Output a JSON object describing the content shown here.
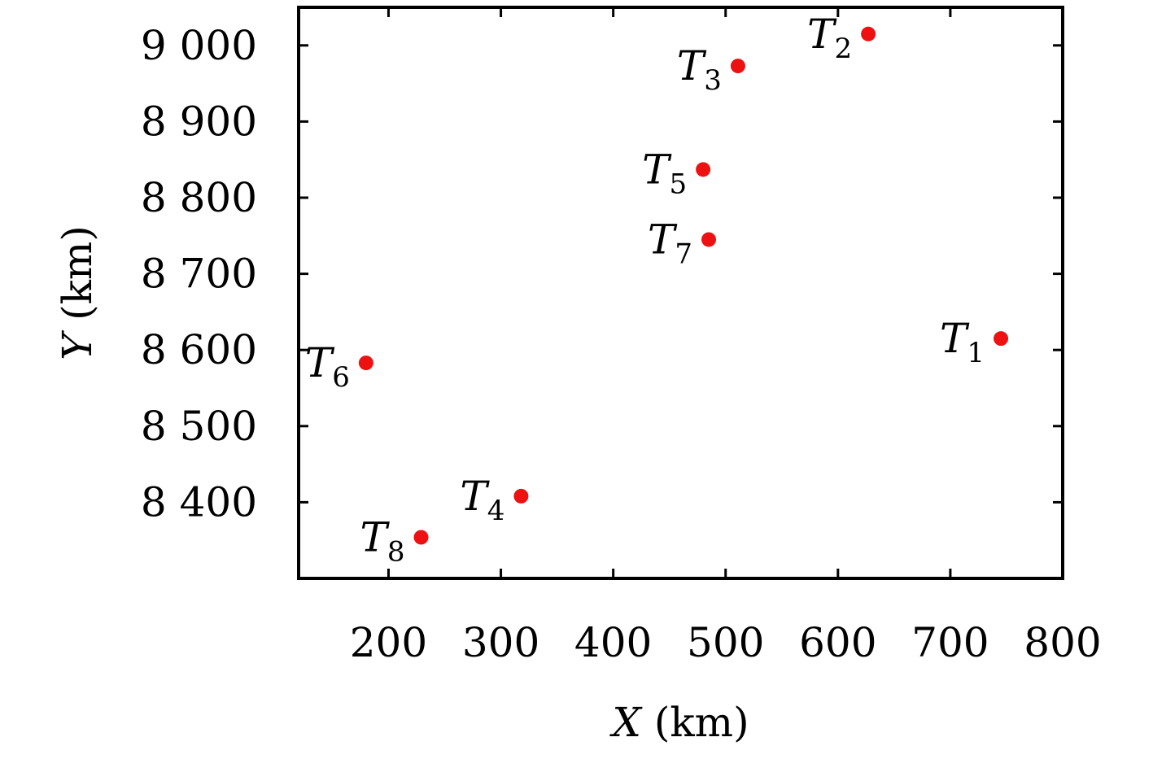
{
  "chart_data": {
    "type": "scatter",
    "title": "",
    "xlabel": "X",
    "xlabel_unit": " (km)",
    "ylabel": "Y",
    "ylabel_unit": " (km)",
    "xlim": [
      120,
      800
    ],
    "ylim": [
      8300,
      9050
    ],
    "xticks": [
      200,
      300,
      400,
      500,
      600,
      700,
      800
    ],
    "yticks": [
      8400,
      8500,
      8600,
      8700,
      8800,
      8900,
      9000
    ],
    "xtick_labels": [
      "200",
      "300",
      "400",
      "500",
      "600",
      "700",
      "800"
    ],
    "ytick_labels": [
      "8 400",
      "8 500",
      "8 600",
      "8 700",
      "8 800",
      "8 900",
      "9 000"
    ],
    "grid": false,
    "marker_color": "#ee1111",
    "points": [
      {
        "name": "T",
        "sub": "1",
        "x": 745,
        "y": 8615,
        "label_side": "left"
      },
      {
        "name": "T",
        "sub": "2",
        "x": 627,
        "y": 9015,
        "label_side": "left"
      },
      {
        "name": "T",
        "sub": "3",
        "x": 511,
        "y": 8973,
        "label_side": "left"
      },
      {
        "name": "T",
        "sub": "4",
        "x": 318,
        "y": 8408,
        "label_side": "left"
      },
      {
        "name": "T",
        "sub": "5",
        "x": 480,
        "y": 8837,
        "label_side": "left"
      },
      {
        "name": "T",
        "sub": "6",
        "x": 180,
        "y": 8583,
        "label_side": "left"
      },
      {
        "name": "T",
        "sub": "7",
        "x": 485,
        "y": 8745,
        "label_side": "left"
      },
      {
        "name": "T",
        "sub": "8",
        "x": 229,
        "y": 8354,
        "label_side": "left"
      }
    ]
  }
}
